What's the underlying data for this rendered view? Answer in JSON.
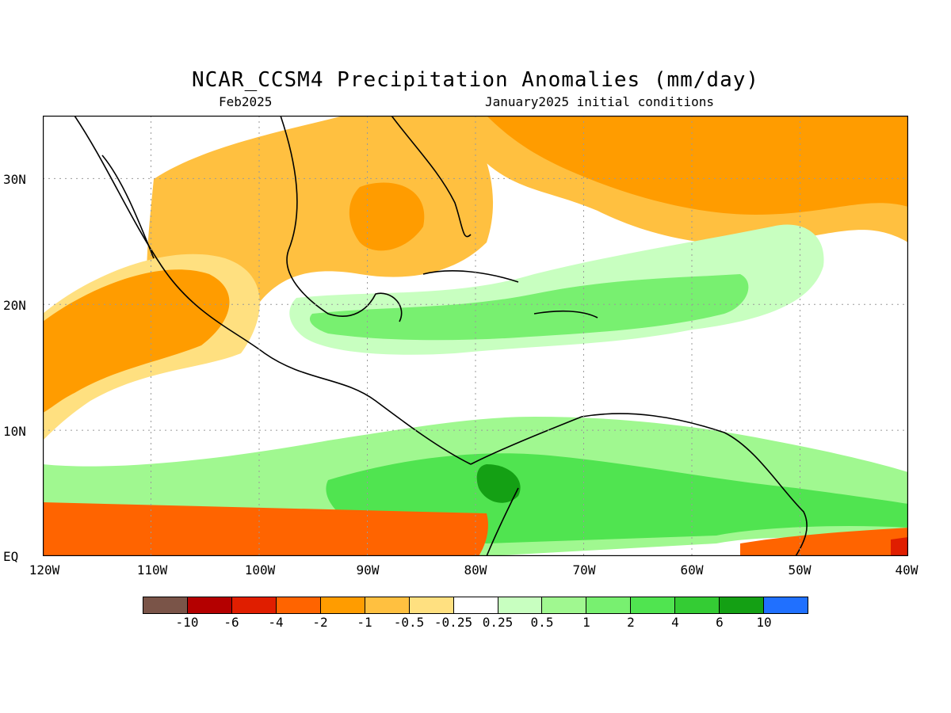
{
  "title": "NCAR_CCSM4 Precipitation Anomalies (mm/day)",
  "subtitle_left": "Feb2025",
  "subtitle_right": "January2025 initial conditions",
  "map": {
    "lon_labels": [
      "120W",
      "110W",
      "100W",
      "90W",
      "80W",
      "70W",
      "60W",
      "50W",
      "40W"
    ],
    "lat_labels": [
      "30N",
      "20N",
      "10N",
      "EQ"
    ],
    "lon_range": [
      -120,
      -40
    ],
    "lat_range": [
      0,
      35
    ],
    "grid": "dotted"
  },
  "colorbar": {
    "colors": [
      "#7a5448",
      "#b40000",
      "#e01e00",
      "#ff6400",
      "#ff9c00",
      "#ffc040",
      "#ffe080",
      "#ffffff",
      "#c8ffc0",
      "#a0f890",
      "#78f070",
      "#50e450",
      "#34cc34",
      "#14a014",
      "#2070ff"
    ],
    "tick_labels": [
      "-10",
      "-6",
      "-4",
      "-2",
      "-1",
      "-0.5",
      "-0.25",
      "0.25",
      "0.5",
      "1",
      "2",
      "4",
      "6",
      "10"
    ]
  }
}
